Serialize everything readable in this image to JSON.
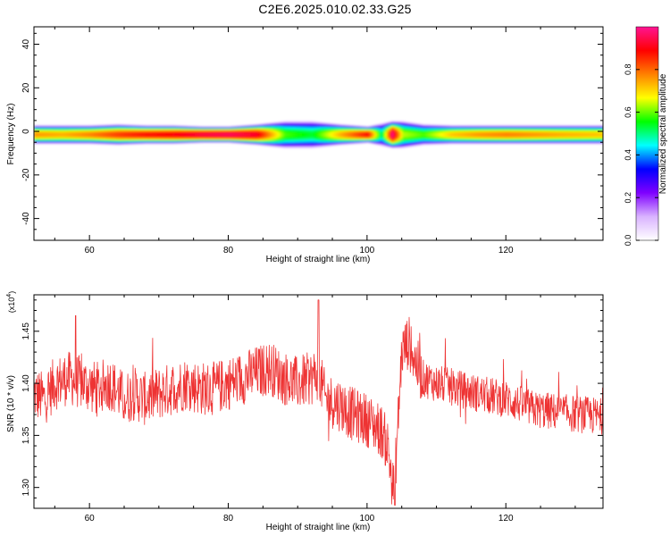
{
  "title": "C2E6.2025.010.02.33.G25",
  "chart_data": [
    {
      "type": "heatmap",
      "xlabel": "Height of straight line (km)",
      "ylabel": "Frequency (Hz)",
      "xlim": [
        52,
        134
      ],
      "ylim": [
        -50,
        48
      ],
      "xticks": [
        60,
        80,
        100,
        120
      ],
      "yticks": [
        -40,
        -20,
        0,
        20,
        40
      ],
      "ytick_labels": [
        "-40",
        "-20",
        "0",
        "20",
        "40"
      ],
      "band_center_hz": -1.5,
      "profile_km": [
        52,
        56,
        60,
        64,
        68,
        72,
        76,
        80,
        84,
        88,
        92,
        96,
        100,
        102,
        103.5,
        105,
        108,
        112,
        116,
        120,
        124,
        128,
        134
      ],
      "profile_amplitude": [
        0.72,
        0.7,
        0.74,
        0.8,
        0.84,
        0.86,
        0.9,
        0.92,
        0.88,
        0.55,
        0.5,
        0.7,
        0.85,
        0.45,
        0.95,
        0.6,
        0.55,
        0.68,
        0.72,
        0.74,
        0.72,
        0.7,
        0.68
      ],
      "profile_halfwidth_hz": [
        4,
        4,
        4,
        4.5,
        4,
        4,
        3.5,
        3.5,
        4.5,
        6,
        6,
        4.5,
        3.5,
        5,
        6,
        6,
        4.5,
        4,
        4,
        4,
        4,
        4,
        4
      ],
      "colorbar": {
        "label": "Normalized spectral amplitude",
        "range": [
          0.0,
          1.0
        ],
        "ticks": [
          0.0,
          0.2,
          0.4,
          0.6,
          0.8
        ],
        "tick_labels": [
          "0.0",
          "0.2",
          "0.4",
          "0.6",
          "0.8"
        ],
        "colors": [
          "#ffffff",
          "#d9b3ff",
          "#7f00ff",
          "#0000ff",
          "#00ffff",
          "#00ff00",
          "#ffff00",
          "#ff8000",
          "#ff0000",
          "#ff1493"
        ]
      }
    },
    {
      "type": "line",
      "xlabel": "Height of straight line (km)",
      "ylabel": "SNR (10 * v/v)",
      "y_multiplier": "(x10",
      "y_multiplier_exp": "4",
      "y_multiplier_close": ")",
      "xlim": [
        52,
        134
      ],
      "ylim": [
        1.28,
        1.485
      ],
      "xticks": [
        60,
        80,
        100,
        120
      ],
      "yticks": [
        1.3,
        1.35,
        1.4,
        1.45
      ],
      "ytick_labels": [
        "1.30",
        "1.35",
        "1.40",
        "1.45"
      ],
      "line_color": "#ee3333",
      "x_km": [
        52,
        53.5,
        55,
        57,
        59,
        61,
        63,
        65,
        66.5,
        68,
        70,
        72,
        74,
        76,
        78,
        80,
        82,
        84,
        86,
        88,
        90,
        92,
        93,
        94,
        96,
        98,
        100,
        101,
        102,
        103,
        103.7,
        104.2,
        105,
        106,
        107,
        108,
        110,
        113,
        116,
        120,
        124,
        128,
        131,
        134
      ],
      "snr": [
        1.39,
        1.385,
        1.4,
        1.405,
        1.4,
        1.395,
        1.4,
        1.385,
        1.39,
        1.385,
        1.39,
        1.395,
        1.4,
        1.395,
        1.395,
        1.4,
        1.405,
        1.41,
        1.415,
        1.405,
        1.4,
        1.405,
        1.41,
        1.385,
        1.38,
        1.37,
        1.365,
        1.36,
        1.355,
        1.34,
        1.3,
        1.33,
        1.43,
        1.44,
        1.42,
        1.405,
        1.4,
        1.395,
        1.39,
        1.385,
        1.375,
        1.372,
        1.37,
        1.368
      ],
      "peak_snr": [
        {
          "x": 58,
          "y": 1.465
        },
        {
          "x": 93,
          "y": 1.48
        },
        {
          "x": 104,
          "y": 1.283
        }
      ]
    }
  ]
}
